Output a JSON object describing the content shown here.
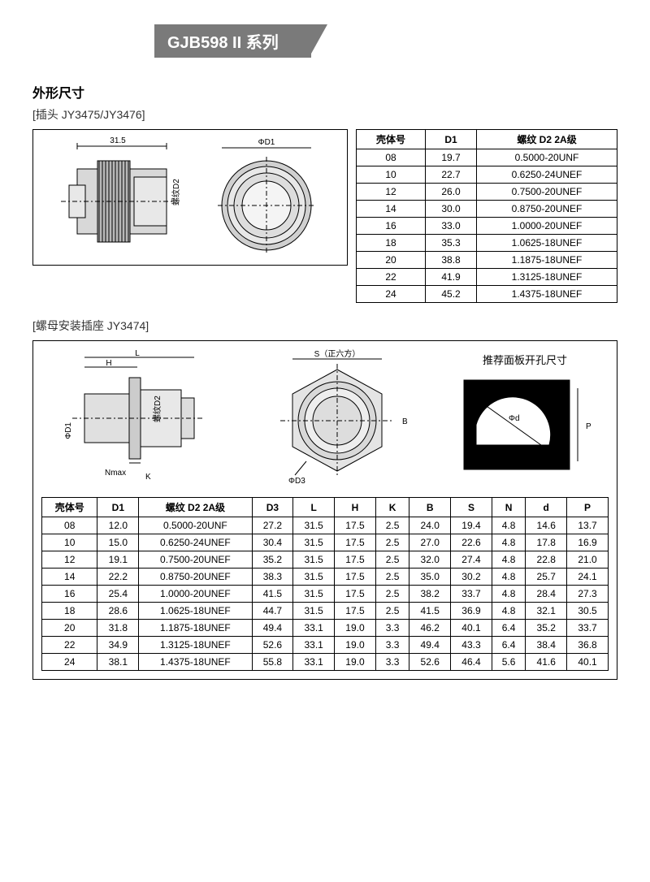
{
  "header": {
    "title": "GJB598 II 系列"
  },
  "section1": {
    "title": "外形尺寸",
    "subtitle": "[插头  JY3475/JY3476]",
    "diagram": {
      "dim1": "31.5",
      "dim2": "ΦD1",
      "dim3": "螺纹D2"
    },
    "table": {
      "headers": [
        "壳体号",
        "D1",
        "螺纹  D2     2A级"
      ],
      "rows": [
        [
          "08",
          "19.7",
          "0.5000-20UNF"
        ],
        [
          "10",
          "22.7",
          "0.6250-24UNEF"
        ],
        [
          "12",
          "26.0",
          "0.7500-20UNEF"
        ],
        [
          "14",
          "30.0",
          "0.8750-20UNEF"
        ],
        [
          "16",
          "33.0",
          "1.0000-20UNEF"
        ],
        [
          "18",
          "35.3",
          "1.0625-18UNEF"
        ],
        [
          "20",
          "38.8",
          "1.1875-18UNEF"
        ],
        [
          "22",
          "41.9",
          "1.3125-18UNEF"
        ],
        [
          "24",
          "45.2",
          "1.4375-18UNEF"
        ]
      ]
    }
  },
  "section2": {
    "subtitle": "[螺母安装插座  JY3474]",
    "diagram_labels": {
      "L": "L",
      "H": "H",
      "D1": "ΦD1",
      "D2": "螺纹D2",
      "D3": "ΦD3",
      "K": "K",
      "Nmax": "Nmax",
      "S": "S（正六方）",
      "B": "B",
      "panel": "推荐面板开孔尺寸",
      "d": "Φd",
      "P": "P"
    },
    "table": {
      "headers": [
        "壳体号",
        "D1",
        "螺纹  D2   2A级",
        "D3",
        "L",
        "H",
        "K",
        "B",
        "S",
        "N",
        "d",
        "P"
      ],
      "rows": [
        [
          "08",
          "12.0",
          "0.5000-20UNF",
          "27.2",
          "31.5",
          "17.5",
          "2.5",
          "24.0",
          "19.4",
          "4.8",
          "14.6",
          "13.7"
        ],
        [
          "10",
          "15.0",
          "0.6250-24UNEF",
          "30.4",
          "31.5",
          "17.5",
          "2.5",
          "27.0",
          "22.6",
          "4.8",
          "17.8",
          "16.9"
        ],
        [
          "12",
          "19.1",
          "0.7500-20UNEF",
          "35.2",
          "31.5",
          "17.5",
          "2.5",
          "32.0",
          "27.4",
          "4.8",
          "22.8",
          "21.0"
        ],
        [
          "14",
          "22.2",
          "0.8750-20UNEF",
          "38.3",
          "31.5",
          "17.5",
          "2.5",
          "35.0",
          "30.2",
          "4.8",
          "25.7",
          "24.1"
        ],
        [
          "16",
          "25.4",
          "1.0000-20UNEF",
          "41.5",
          "31.5",
          "17.5",
          "2.5",
          "38.2",
          "33.7",
          "4.8",
          "28.4",
          "27.3"
        ],
        [
          "18",
          "28.6",
          "1.0625-18UNEF",
          "44.7",
          "31.5",
          "17.5",
          "2.5",
          "41.5",
          "36.9",
          "4.8",
          "32.1",
          "30.5"
        ],
        [
          "20",
          "31.8",
          "1.1875-18UNEF",
          "49.4",
          "33.1",
          "19.0",
          "3.3",
          "46.2",
          "40.1",
          "6.4",
          "35.2",
          "33.7"
        ],
        [
          "22",
          "34.9",
          "1.3125-18UNEF",
          "52.6",
          "33.1",
          "19.0",
          "3.3",
          "49.4",
          "43.3",
          "6.4",
          "38.4",
          "36.8"
        ],
        [
          "24",
          "38.1",
          "1.4375-18UNEF",
          "55.8",
          "33.1",
          "19.0",
          "3.3",
          "52.6",
          "46.4",
          "5.6",
          "41.6",
          "40.1"
        ]
      ]
    }
  }
}
